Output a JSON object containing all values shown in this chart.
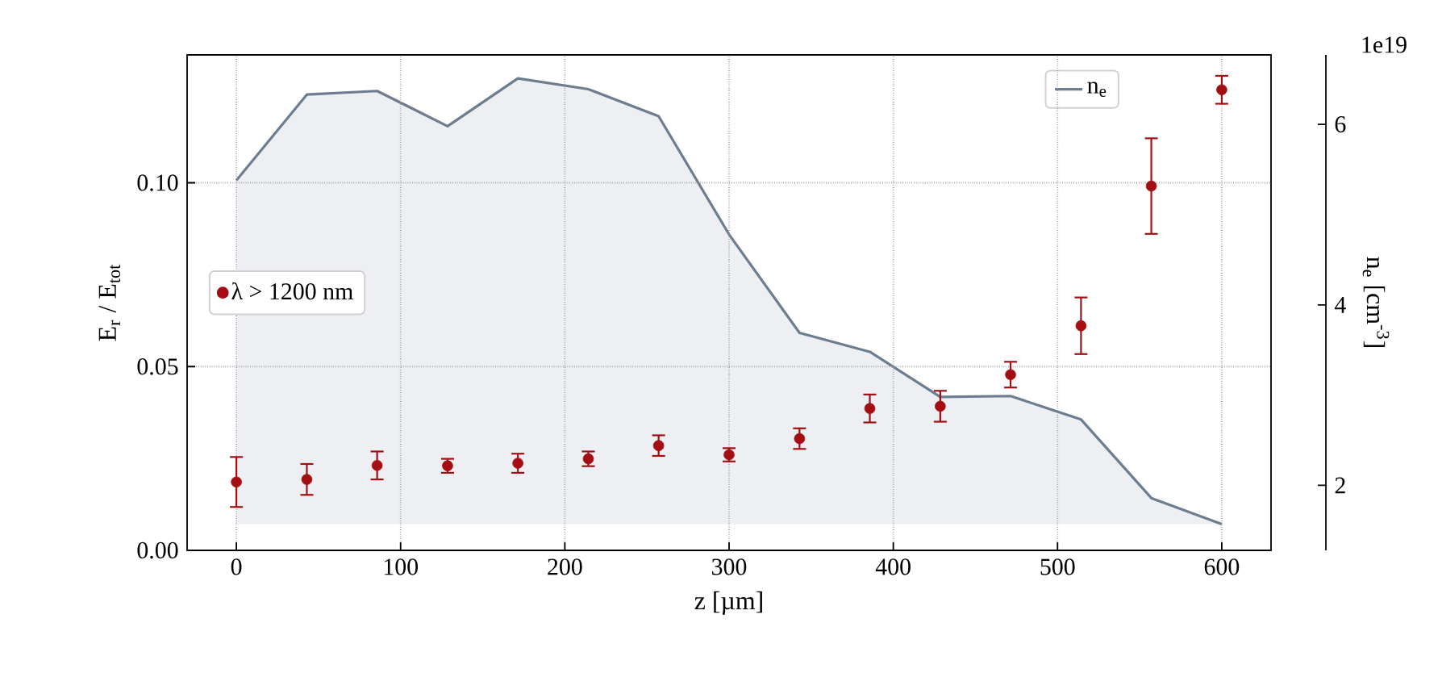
{
  "chart_data": {
    "type": "scatter",
    "xlabel": "z [µm]",
    "ylabel": "E$_{r}$ / E$_{tot}$",
    "y2label": "n$_{e}$ [cm$^{-3}$]",
    "x": [
      0,
      42.9,
      85.7,
      128.6,
      171.4,
      214.3,
      257.1,
      300,
      342.9,
      385.7,
      428.6,
      471.4,
      514.3,
      557.1,
      600
    ],
    "series": [
      {
        "name": "λ > 1200 nm",
        "color": "#a40e12",
        "marker": "circle",
        "values": [
          0.0186,
          0.0193,
          0.0231,
          0.023,
          0.0237,
          0.0249,
          0.0285,
          0.026,
          0.0304,
          0.0386,
          0.0392,
          0.0478,
          0.0611,
          0.0991,
          0.1253
        ],
        "errors": [
          0.0068,
          0.0042,
          0.0038,
          0.0019,
          0.0026,
          0.002,
          0.0028,
          0.0018,
          0.0028,
          0.0038,
          0.0042,
          0.0035,
          0.0077,
          0.013,
          0.0038
        ]
      },
      {
        "name": "n$_{e}$",
        "type": "area",
        "axis": "y2",
        "color": "#6b7d8f",
        "marker": "none",
        "values": [
          5.38,
          6.33,
          6.37,
          5.98,
          6.51,
          6.39,
          6.09,
          4.78,
          3.69,
          3.48,
          2.98,
          2.99,
          2.73,
          1.86,
          1.57
        ]
      }
    ],
    "xlim": [
      -30,
      630
    ],
    "xticks": [
      0,
      100,
      200,
      300,
      400,
      500,
      600
    ],
    "ylim": [
      0,
      0.1348
    ],
    "yticks": [
      {
        "value": 0,
        "label": "0.00"
      },
      {
        "value": 0.05,
        "label": "0.05"
      },
      {
        "value": 0.1,
        "label": "0.10"
      }
    ],
    "y2lim": [
      1.28,
      6.77
    ],
    "y2ticks": [
      2,
      4,
      6
    ],
    "grid": true,
    "legend": "center left",
    "annotations": [
      "1e19"
    ]
  }
}
